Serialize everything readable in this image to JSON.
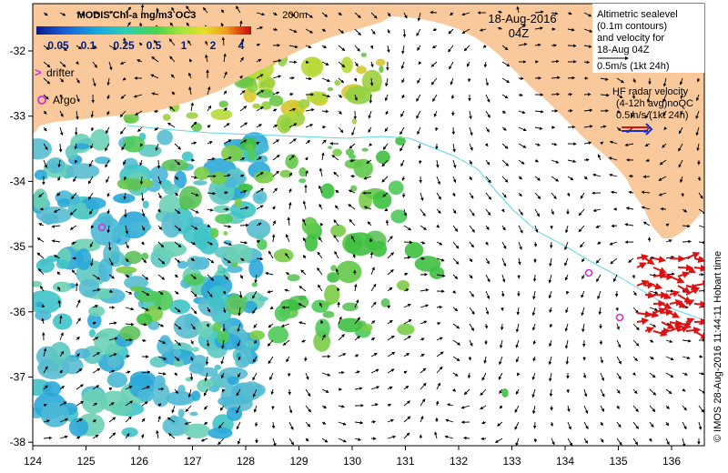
{
  "title": {
    "date": "18-Aug-2016",
    "time": "04Z"
  },
  "colorbar": {
    "title": "MODIS Chl-a mg/m3 OC3",
    "ticks": [
      "0.05",
      "0.1",
      "0.25",
      "0.5",
      "1",
      "2",
      "4"
    ],
    "colors": [
      "#0a1a8c",
      "#1559d6",
      "#16a7e0",
      "#2fd0b0",
      "#4bd44b",
      "#a9e43a",
      "#e6de2a",
      "#f0a020",
      "#e04010",
      "#c01010"
    ]
  },
  "isobath_label": "200m",
  "legend": {
    "drifter_label": "drifter",
    "argo_label": "Argo",
    "altimetry_lines": [
      "Altimetric sealevel",
      "(0.1m contours)",
      "and velocity for",
      "18-Aug 04Z",
      "0.5m/s (1kt 24h)"
    ],
    "hf_lines": [
      "HF radar velocity",
      "(4-12h avg)noQC",
      "0.5m/s (1kt 24h)"
    ]
  },
  "credit": "© IMOS 28-Aug-2016 11:44:11 Hobart time",
  "axes": {
    "x_ticks": [
      "124",
      "125",
      "126",
      "127",
      "128",
      "129",
      "130",
      "131",
      "132",
      "133",
      "134",
      "135",
      "136"
    ],
    "y_ticks": [
      "-32",
      "-33",
      "-34",
      "-35",
      "-36",
      "-37",
      "-38"
    ]
  },
  "colors": {
    "land": "#f9c89b",
    "isobath": "#5fd6e6",
    "argo": "#cc33cc",
    "hf_radar": "#e01010",
    "vector": "#000000"
  }
}
